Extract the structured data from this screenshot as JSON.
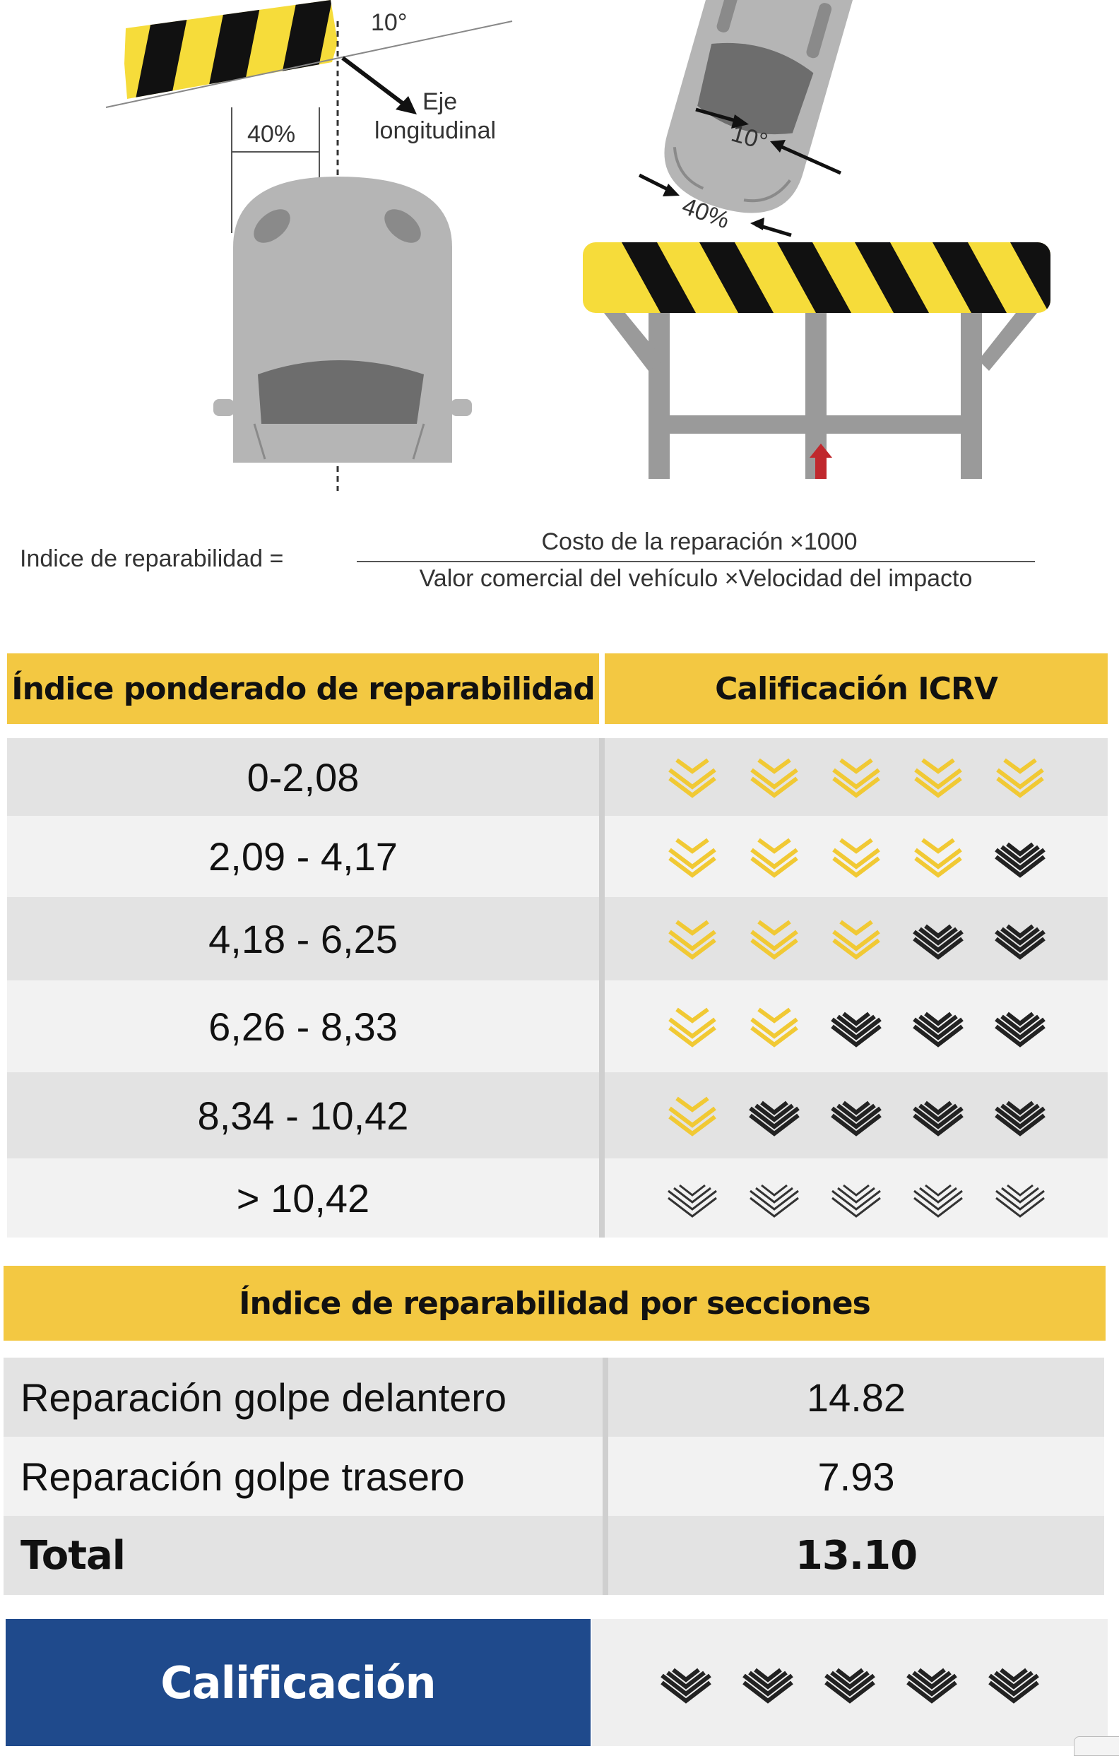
{
  "diagram": {
    "angle_label_top": "10°",
    "percent_label_left": "40%",
    "axis_label_line1": "Eje",
    "axis_label_line2": "longitudinal",
    "angle_label_right": "10°",
    "percent_label_right": "40%"
  },
  "formula": {
    "label": "Indice de reparabilidad =",
    "numerator": "Costo de la reparación ×1000",
    "denominator": "Valor comercial del vehículo ×Velocidad del impacto"
  },
  "rating_table": {
    "header_left": "Índice ponderado de reparabilidad",
    "header_right": "Calificación ICRV",
    "rows": [
      {
        "range": "0-2,08",
        "rating": 5
      },
      {
        "range": "2,09 - 4,17",
        "rating": 4
      },
      {
        "range": "4,18 - 6,25",
        "rating": 3
      },
      {
        "range": "6,26 - 8,33",
        "rating": 2
      },
      {
        "range": "8,34 - 10,42",
        "rating": 1
      },
      {
        "range": "> 10,42",
        "rating": 0
      }
    ],
    "max_rating": 5
  },
  "sections_table": {
    "header": "Índice de reparabilidad por secciones",
    "rows": [
      {
        "label": "Reparación golpe delantero",
        "value": "14.82"
      },
      {
        "label": "Reparación golpe trasero",
        "value": "7.93"
      },
      {
        "label": "Total",
        "value": "13.10"
      }
    ]
  },
  "final": {
    "label": "Calificación",
    "rating": 0
  },
  "colors": {
    "accent_yellow": "#f3c842",
    "brand_blue": "#1f4a8c",
    "icon_gold": "#f1c934",
    "icon_black": "#222222",
    "icon_outline": "#333333"
  }
}
